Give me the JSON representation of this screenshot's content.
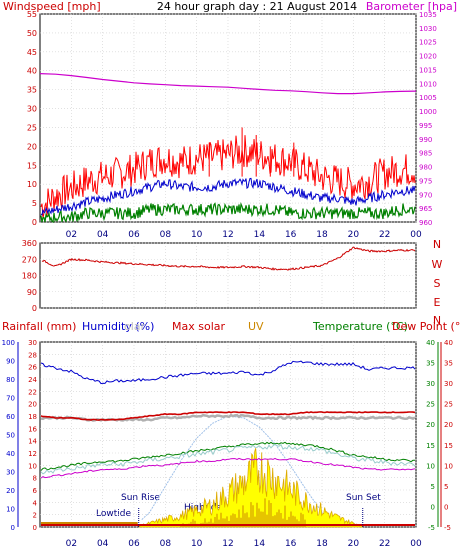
{
  "page": {
    "title": "24 hour graph day : 21 August 2014"
  },
  "colors": {
    "background": "#ffffff",
    "grid": "#d0d0d0",
    "frame": "#000000",
    "wind": "#ff0000",
    "gust": "#ff0000",
    "avg_wind": "#0000cc",
    "wind_green": "#008000",
    "barometer": "#cc00cc",
    "direction": "#cc0000",
    "humidity": "#0000cc",
    "rainfall": "#cc0000",
    "max_solar": "#cc0000",
    "uv": "#cc8800",
    "temperature": "#008000",
    "dew_point": "#cc0000",
    "solar_fill": "#ffff00",
    "solar_line": "#ddaa00",
    "theoretical_solar": "#a0c0e8",
    "left_axis_text": "#cc0000",
    "right_axis_text": "#cc00cc",
    "humidity_axis": "#0000cc",
    "temp_axis": "#008000"
  },
  "chart_data": [
    {
      "type": "line",
      "panel": "wind-barometer",
      "title": "24 hour graph day : 21 August 2014",
      "ylabel": "Windspeed [mph]",
      "y2label": "Barometer [hpa]",
      "ylim": [
        0,
        55
      ],
      "y2lim": [
        960,
        1035
      ],
      "yticks": [
        "0",
        "5",
        "10",
        "15",
        "20",
        "25",
        "30",
        "35",
        "40",
        "45",
        "50",
        "55"
      ],
      "y2ticks": [
        "960",
        "965",
        "970",
        "975",
        "980",
        "985",
        "990",
        "995",
        "1000",
        "1005",
        "1010",
        "1015",
        "1020",
        "1025",
        "1030",
        "1035"
      ],
      "xticks": [
        "02",
        "04",
        "06",
        "08",
        "10",
        "12",
        "14",
        "16",
        "18",
        "20",
        "22",
        "00"
      ],
      "x_hours": [
        0,
        1,
        2,
        3,
        4,
        5,
        6,
        7,
        8,
        9,
        10,
        11,
        12,
        13,
        14,
        15,
        16,
        17,
        18,
        19,
        20,
        21,
        22,
        23,
        24
      ],
      "series": [
        {
          "key": "gust",
          "color": "#ff0000",
          "values": [
            3,
            6,
            8,
            10,
            11,
            12,
            13,
            15,
            16,
            15,
            16,
            16,
            17,
            18,
            17,
            16,
            15,
            13,
            11,
            10,
            9,
            10,
            12,
            13,
            13
          ]
        },
        {
          "key": "avg",
          "color": "#0000cc",
          "values": [
            2,
            3,
            4,
            5,
            6,
            7,
            8,
            9,
            10,
            9,
            9,
            9,
            10,
            10,
            10,
            9,
            8,
            7,
            6,
            6,
            5,
            6,
            7,
            8,
            8
          ]
        },
        {
          "key": "low",
          "color": "#008000",
          "values": [
            0,
            1,
            1,
            2,
            2,
            2,
            2,
            3,
            3,
            3,
            3,
            3,
            3,
            3,
            3,
            3,
            2,
            2,
            2,
            2,
            2,
            2,
            2,
            3,
            3
          ]
        },
        {
          "key": "barometer",
          "axis": "right",
          "color": "#cc00cc",
          "values": [
            1013.5,
            1013.3,
            1012.8,
            1012.1,
            1011.4,
            1010.8,
            1010.2,
            1009.8,
            1009.5,
            1009.2,
            1009.0,
            1008.8,
            1008.6,
            1008.2,
            1007.8,
            1007.5,
            1007.3,
            1007.0,
            1006.6,
            1006.3,
            1006.3,
            1006.6,
            1006.9,
            1007.1,
            1007.2
          ]
        }
      ],
      "peak_gust": 25
    },
    {
      "type": "line",
      "panel": "wind-direction",
      "ylim": [
        0,
        360
      ],
      "yticks": [
        "0",
        "90",
        "180",
        "270",
        "360"
      ],
      "compass": [
        "N",
        "W",
        "S",
        "E",
        "N"
      ],
      "xticks": [
        "02",
        "04",
        "06",
        "08",
        "10",
        "12",
        "14",
        "16",
        "18",
        "20",
        "22",
        "00"
      ],
      "x_hours": [
        0,
        1,
        2,
        3,
        4,
        5,
        6,
        7,
        8,
        9,
        10,
        11,
        12,
        13,
        14,
        15,
        16,
        17,
        18,
        19,
        20,
        21,
        22,
        23,
        24
      ],
      "series": [
        {
          "key": "direction",
          "color": "#cc0000",
          "values": [
            270,
            230,
            270,
            265,
            255,
            250,
            245,
            240,
            235,
            230,
            230,
            225,
            225,
            230,
            225,
            215,
            215,
            225,
            235,
            275,
            335,
            315,
            315,
            320,
            320
          ]
        }
      ]
    },
    {
      "type": "line",
      "panel": "rain-humidity-temp",
      "labels": {
        "rainfall": "Rainfall (mm)",
        "humidity": "Humidity (%)",
        "solar_ghost": "olar",
        "max_solar": "Max solar",
        "uv": "UV",
        "temperature": "Temperature (°C)",
        "dew_point": "Dew Point (°C)"
      },
      "humidity_ticks": [
        "0",
        "10",
        "20",
        "30",
        "40",
        "50",
        "60",
        "70",
        "80",
        "90",
        "100"
      ],
      "rain_ticks": [
        "0",
        "2",
        "4",
        "6",
        "8",
        "10",
        "12",
        "14",
        "16",
        "18",
        "20",
        "22",
        "24",
        "26",
        "28",
        "30"
      ],
      "temp_ticks": [
        "-5",
        "0",
        "5",
        "10",
        "15",
        "20",
        "25",
        "30",
        "35",
        "40"
      ],
      "humidity_lim": [
        0,
        100
      ],
      "temp_lim": [
        -5,
        40
      ],
      "xticks": [
        "02",
        "04",
        "06",
        "08",
        "10",
        "12",
        "14",
        "16",
        "18",
        "20",
        "22",
        "00"
      ],
      "x_hours": [
        0,
        1,
        2,
        3,
        4,
        5,
        6,
        7,
        8,
        9,
        10,
        11,
        12,
        13,
        14,
        15,
        16,
        17,
        18,
        19,
        20,
        21,
        22,
        23,
        24
      ],
      "series": [
        {
          "key": "humidity",
          "axis": "humidity",
          "color": "#0000cc",
          "values": [
            88,
            86,
            84,
            80,
            78,
            79,
            79,
            80,
            81,
            82,
            83,
            83,
            83,
            84,
            82,
            85,
            89,
            89,
            88,
            88,
            88,
            85,
            86,
            86,
            86
          ]
        },
        {
          "key": "rainfall",
          "axis": "humidity",
          "color": "#cc0000",
          "values": [
            60,
            59,
            59,
            58,
            58,
            58,
            59,
            60,
            61,
            61,
            62,
            62,
            62,
            62,
            61,
            61,
            61,
            62,
            62,
            62,
            62,
            62,
            62,
            62,
            62
          ]
        },
        {
          "key": "ghost",
          "axis": "humidity",
          "color": "#b0b0b0",
          "values": [
            59,
            59,
            59,
            58,
            58,
            58,
            58,
            58,
            59,
            59,
            60,
            60,
            60,
            60,
            59,
            59,
            59,
            59,
            59,
            59,
            59,
            59,
            59,
            59,
            59
          ]
        },
        {
          "key": "temperature",
          "axis": "temp",
          "color": "#008000",
          "values": [
            9,
            9.5,
            10,
            10.5,
            11,
            11,
            11.5,
            12,
            12.5,
            13,
            13.5,
            14,
            14.5,
            15,
            15.2,
            15.5,
            15.2,
            15,
            14.5,
            13.5,
            12.5,
            12,
            11.5,
            11.3,
            11
          ]
        },
        {
          "key": "dew_point",
          "axis": "temp",
          "color": "#cc00cc",
          "values": [
            7,
            7.5,
            8,
            8.5,
            9,
            9,
            9.5,
            10,
            10,
            10.5,
            11,
            11,
            11.5,
            11.5,
            11.5,
            11.5,
            11.5,
            11,
            10.5,
            10,
            9.5,
            9,
            9,
            9,
            9
          ]
        },
        {
          "key": "solar",
          "axis": "humidity",
          "color": "#ddaa00",
          "values": [
            0,
            0,
            0,
            0,
            0,
            0,
            0,
            2,
            4,
            6,
            9,
            12,
            18,
            24,
            32,
            26,
            20,
            14,
            9,
            5,
            2,
            0,
            0,
            0,
            0
          ]
        },
        {
          "key": "theoretical_solar",
          "axis": "humidity",
          "color": "#a0c0e8",
          "values": [
            0,
            0,
            0,
            0,
            0,
            0,
            0,
            8,
            22,
            36,
            48,
            56,
            60,
            59,
            54,
            45,
            33,
            20,
            8,
            1,
            0,
            0,
            0,
            0,
            0
          ]
        }
      ],
      "annotations": {
        "sunrise": "Sun Rise",
        "sunset": "Sun Set",
        "lowtide": "Lowtide",
        "hightide": "Hightide"
      }
    }
  ]
}
